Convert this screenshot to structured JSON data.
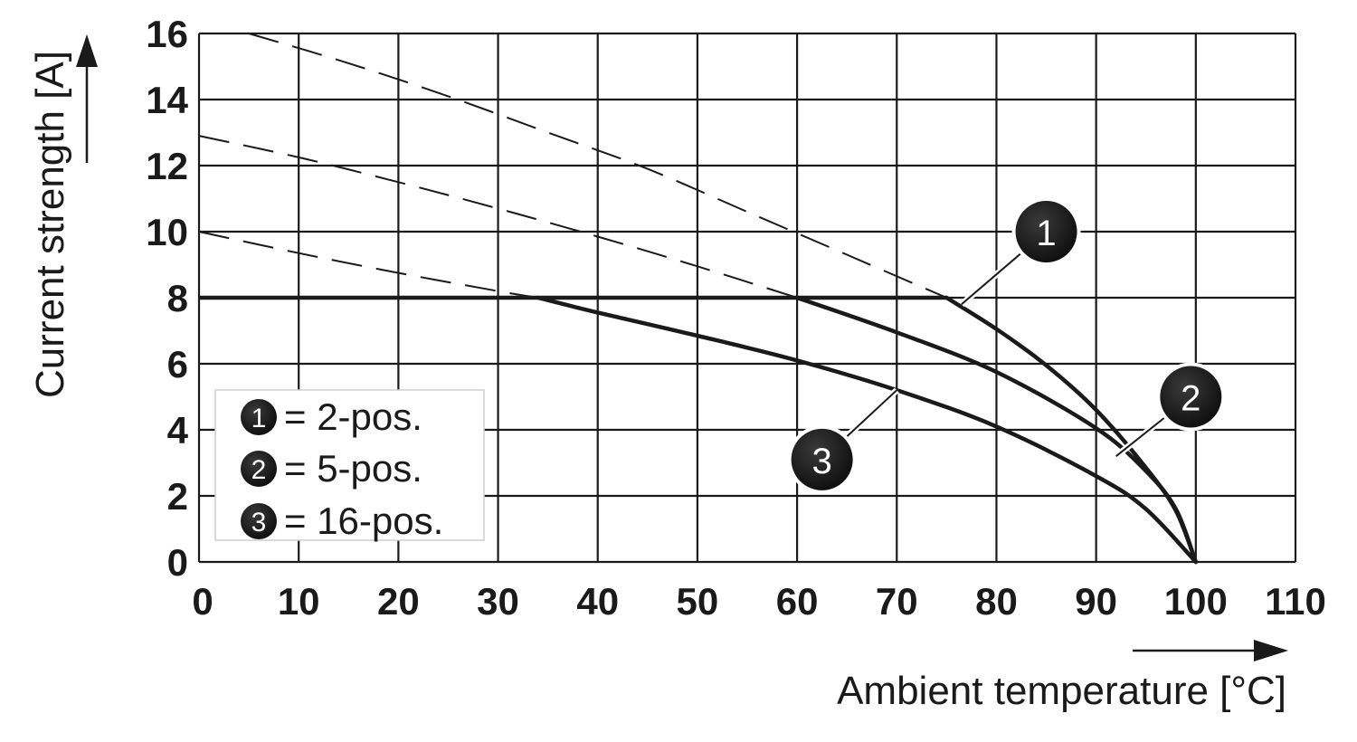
{
  "chart_data": {
    "type": "line",
    "xlabel": "Ambient temperature [°C]",
    "ylabel": "Current strength [A]",
    "xlim": [
      0,
      110
    ],
    "ylim": [
      0,
      16
    ],
    "x_ticks": [
      0,
      10,
      20,
      30,
      40,
      50,
      60,
      70,
      80,
      90,
      100,
      110
    ],
    "y_ticks": [
      0,
      2,
      4,
      6,
      8,
      10,
      12,
      14,
      16
    ],
    "grid": true,
    "legend_position": "lower-left",
    "legend": [
      {
        "marker": "1",
        "label": "= 2-pos."
      },
      {
        "marker": "2",
        "label": "= 5-pos."
      },
      {
        "marker": "3",
        "label": "= 16-pos."
      }
    ],
    "limit_line": {
      "y": 8,
      "x": [
        0,
        75
      ]
    },
    "series": [
      {
        "name": "1",
        "dashed": {
          "x": [
            5,
            15,
            25,
            35,
            45,
            55,
            65,
            75
          ],
          "y": [
            16.0,
            15.1,
            14.1,
            13.0,
            11.9,
            10.6,
            9.3,
            8.0
          ]
        },
        "solid": {
          "x": [
            75,
            80,
            85,
            90,
            95,
            98,
            100
          ],
          "y": [
            8.0,
            7.05,
            5.95,
            4.6,
            2.85,
            1.55,
            0
          ]
        }
      },
      {
        "name": "2",
        "dashed": {
          "x": [
            0,
            10,
            20,
            30,
            40,
            50,
            60
          ],
          "y": [
            12.9,
            12.25,
            11.5,
            10.7,
            9.85,
            8.95,
            8.0
          ]
        },
        "solid": {
          "x": [
            60,
            70,
            80,
            90,
            95,
            98,
            100
          ],
          "y": [
            8.0,
            6.95,
            5.75,
            4.05,
            2.75,
            1.6,
            0
          ]
        }
      },
      {
        "name": "3",
        "dashed": {
          "x": [
            0,
            10,
            20,
            30,
            34
          ],
          "y": [
            10.0,
            9.35,
            8.75,
            8.2,
            8.0
          ]
        },
        "solid": {
          "x": [
            34,
            40,
            50,
            60,
            70,
            80,
            90,
            95,
            100
          ],
          "y": [
            8.0,
            7.55,
            6.85,
            6.1,
            5.2,
            4.1,
            2.6,
            1.6,
            0
          ]
        }
      }
    ],
    "callouts": [
      {
        "label": "1",
        "anchor": [
          76.5,
          7.8
        ],
        "badge": [
          85,
          10
        ]
      },
      {
        "label": "2",
        "anchor": [
          92,
          3.2
        ],
        "badge": [
          99.5,
          5.0
        ]
      },
      {
        "label": "3",
        "anchor": [
          70,
          5.2
        ],
        "badge": [
          62.5,
          3.1
        ]
      }
    ]
  }
}
